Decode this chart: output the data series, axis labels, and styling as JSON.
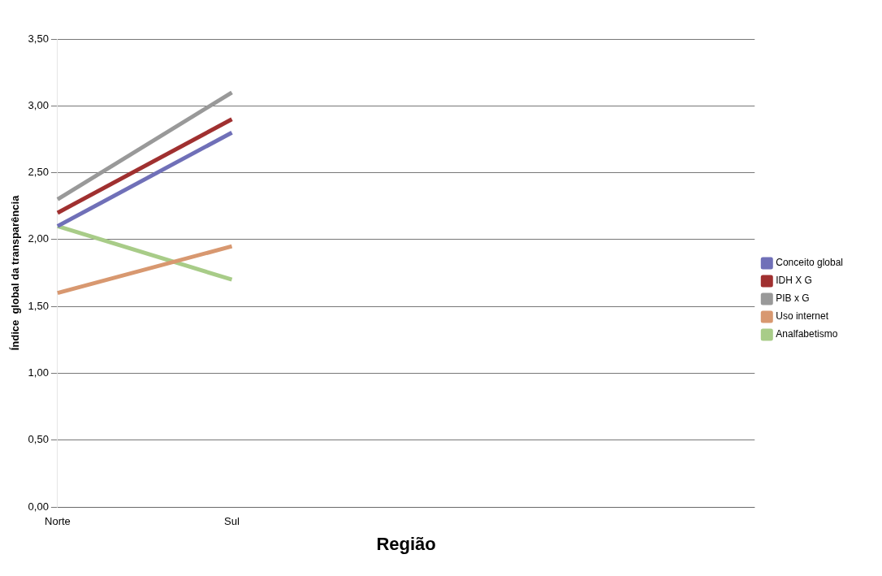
{
  "chart_data": {
    "type": "line",
    "xlabel": "Região",
    "ylabel": "Índice  global da transparência",
    "categories": [
      "Norte",
      "Sul",
      null,
      null,
      null
    ],
    "series": [
      {
        "name": "Conceito global",
        "color": "#7070b8",
        "values": [
          2.1,
          2.8,
          null,
          null,
          null
        ]
      },
      {
        "name": "IDH X G",
        "color": "#a03030",
        "values": [
          2.2,
          2.9,
          null,
          null,
          null
        ]
      },
      {
        "name": "PIB x G",
        "color": "#999999",
        "values": [
          2.3,
          3.1,
          null,
          null,
          null
        ]
      },
      {
        "name": "Uso internet",
        "color": "#d89870",
        "values": [
          1.6,
          1.95,
          null,
          null,
          null
        ]
      },
      {
        "name": "Analfabetismo",
        "color": "#a8cc88",
        "values": [
          2.1,
          1.7,
          null,
          null,
          null
        ]
      }
    ],
    "ylim": [
      0,
      3.5
    ],
    "yticks": [
      {
        "value": 0,
        "label": "0,00"
      },
      {
        "value": 0.5,
        "label": "0,50"
      },
      {
        "value": 1,
        "label": "1,00"
      },
      {
        "value": 1.5,
        "label": "1,50"
      },
      {
        "value": 2,
        "label": "2,00"
      },
      {
        "value": 2.5,
        "label": "2,50"
      },
      {
        "value": 3,
        "label": "3,00"
      },
      {
        "value": 3.5,
        "label": "3,50"
      }
    ],
    "grid": "y",
    "legend": "right",
    "marker": "none",
    "line_style": "solid"
  }
}
